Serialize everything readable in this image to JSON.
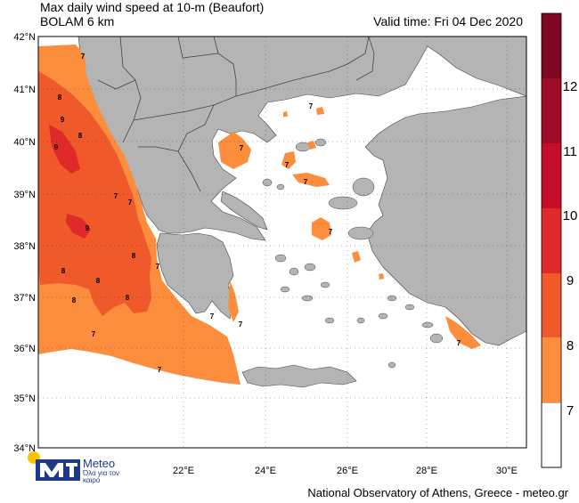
{
  "title": "Max daily wind speed at 10-m (Beaufort)",
  "subtitle": "BOLAM 6 km",
  "valid_time": "Valid time: Fri 04 Dec 2020",
  "credit": "National Observatory of Athens, Greece - meteo.gr",
  "logo": {
    "name": "Meteo",
    "tagline": "Όλα για τον καιρό"
  },
  "latitude_labels": [
    "42°N",
    "41°N",
    "40°N",
    "39°N",
    "38°N",
    "37°N",
    "36°N",
    "35°N",
    "34°N"
  ],
  "longitude_labels": [
    "22°E",
    "24°E",
    "26°E",
    "28°E",
    "30°E"
  ],
  "colorbar": {
    "levels": [
      {
        "label": "7",
        "color": "#ffffff"
      },
      {
        "label": "8",
        "color": "#fc8d3c"
      },
      {
        "label": "9",
        "color": "#f05a2a"
      },
      {
        "label": "10",
        "color": "#e0292b"
      },
      {
        "label": "11",
        "color": "#c40e2a"
      },
      {
        "label": "12",
        "color": "#9e0a28"
      },
      {
        "label": "",
        "color": "#7d0620"
      }
    ]
  },
  "map_labels": [
    {
      "text": "7"
    },
    {
      "text": "8"
    },
    {
      "text": "9"
    },
    {
      "text": "9"
    },
    {
      "text": "8"
    },
    {
      "text": "7"
    },
    {
      "text": "7"
    },
    {
      "text": "9"
    },
    {
      "text": "8"
    },
    {
      "text": "8"
    },
    {
      "text": "8"
    },
    {
      "text": "8"
    },
    {
      "text": "8"
    },
    {
      "text": "7"
    },
    {
      "text": "7"
    },
    {
      "text": "7"
    },
    {
      "text": "7"
    },
    {
      "text": "7"
    },
    {
      "text": "7"
    },
    {
      "text": "7"
    },
    {
      "text": "7"
    },
    {
      "text": "7"
    },
    {
      "text": "7"
    },
    {
      "text": "7"
    }
  ],
  "colors": {
    "land": "#b4b4b4",
    "sea": "#ffffff",
    "border": "#555555"
  }
}
